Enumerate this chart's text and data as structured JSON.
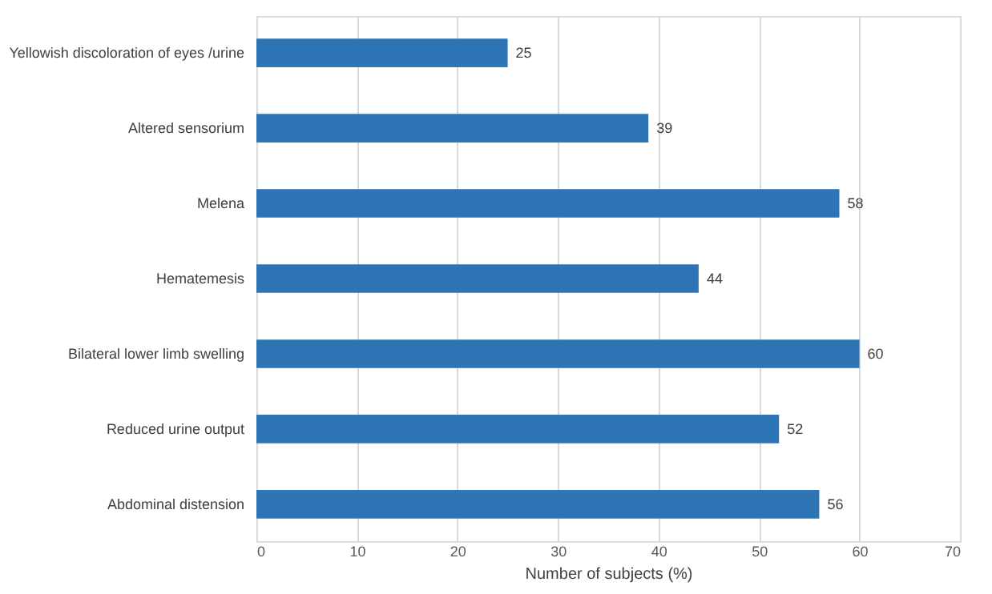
{
  "chart_data": {
    "type": "bar",
    "orientation": "horizontal",
    "xlabel": "Number of subjects (%)",
    "categories": [
      "Yellowish discoloration of eyes /urine",
      "Altered sensorium",
      "Melena",
      "Hematemesis",
      "Bilateral lower limb swelling",
      "Reduced urine output",
      "Abdominal distension"
    ],
    "values": [
      25,
      39,
      58,
      44,
      60,
      52,
      56
    ],
    "color": "#2e75b6",
    "xlim": [
      0,
      70
    ],
    "xticks": [
      0,
      10,
      20,
      30,
      40,
      50,
      60,
      70
    ],
    "grid": "x",
    "data_labels": true
  }
}
